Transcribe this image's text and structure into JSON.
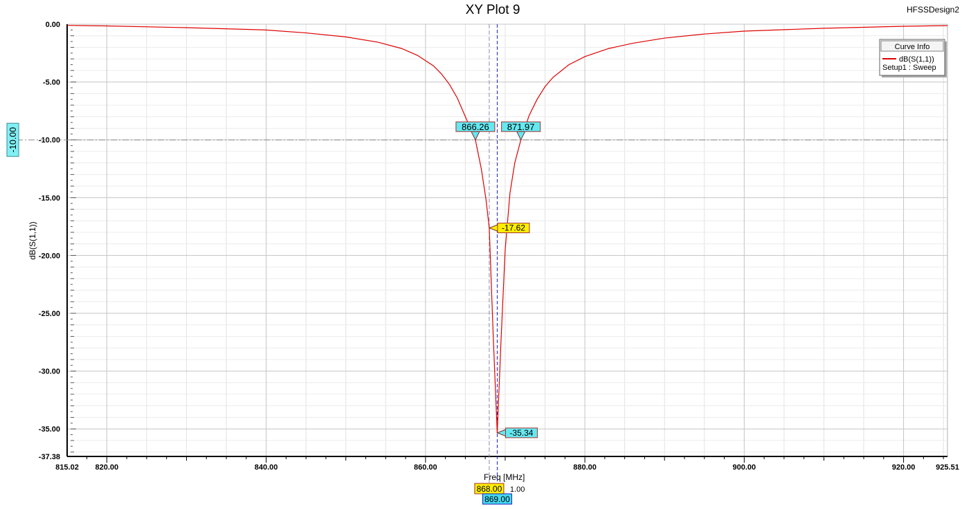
{
  "design_name": "HFSSDesign2",
  "chart_data": {
    "type": "line",
    "title": "XY Plot 9",
    "xlabel": "Freq [MHz]",
    "ylabel": "dB(S(1,1))",
    "xlim": [
      815.02,
      925.51
    ],
    "ylim": [
      -37.38,
      0.0
    ],
    "x_ticks": [
      {
        "value": 815.02,
        "label": "815.02"
      },
      {
        "value": 820,
        "label": "820.00"
      },
      {
        "value": 840,
        "label": "840.00"
      },
      {
        "value": 860,
        "label": "860.00"
      },
      {
        "value": 880,
        "label": "880.00"
      },
      {
        "value": 900,
        "label": "900.00"
      },
      {
        "value": 920,
        "label": "920.00"
      },
      {
        "value": 925.51,
        "label": "925.51"
      }
    ],
    "y_ticks": [
      {
        "value": 0,
        "label": "0.00"
      },
      {
        "value": -5,
        "label": "-5.00"
      },
      {
        "value": -10,
        "label": "-10.00"
      },
      {
        "value": -15,
        "label": "-15.00"
      },
      {
        "value": -20,
        "label": "-20.00"
      },
      {
        "value": -25,
        "label": "-25.00"
      },
      {
        "value": -30,
        "label": "-30.00"
      },
      {
        "value": -35,
        "label": "-35.00"
      },
      {
        "value": -37.38,
        "label": "-37.38"
      }
    ],
    "grid": true,
    "legend_position": "top-right",
    "legend": {
      "title": "Curve Info",
      "series_label": "dB(S(1,1))",
      "setup_label": "Setup1 : Sweep"
    },
    "series": [
      {
        "name": "dB(S(1,1))",
        "color": "#dd0000",
        "x": [
          815.02,
          820,
          830,
          840,
          845,
          850,
          854,
          857,
          859,
          861,
          862,
          863,
          864,
          865,
          866.26,
          867,
          867.6,
          868,
          868.5,
          869,
          869.5,
          870,
          870.6,
          871.2,
          871.97,
          873,
          874,
          875,
          876,
          878,
          880,
          883,
          886,
          890,
          895,
          900,
          910,
          920,
          925.51
        ],
        "values": [
          -0.1,
          -0.15,
          -0.3,
          -0.5,
          -0.75,
          -1.1,
          -1.55,
          -2.1,
          -2.7,
          -3.6,
          -4.3,
          -5.2,
          -6.4,
          -8.0,
          -10.0,
          -12.5,
          -15.2,
          -17.62,
          -27.0,
          -35.34,
          -27.0,
          -19.5,
          -14.6,
          -12.0,
          -10.0,
          -7.9,
          -6.5,
          -5.4,
          -4.6,
          -3.5,
          -2.8,
          -2.1,
          -1.65,
          -1.2,
          -0.85,
          -0.6,
          -0.35,
          -0.18,
          -0.12
        ]
      }
    ],
    "reference_line": {
      "y": -10.0,
      "label": "-10.00"
    },
    "markers": [
      {
        "x": 866.26,
        "y": -10.0,
        "label": "866.26",
        "color": "#66e8f0"
      },
      {
        "x": 871.97,
        "y": -10.0,
        "label": "871.97",
        "color": "#66e8f0"
      },
      {
        "x": 868.0,
        "y": -17.62,
        "label": "-17.62",
        "color": "#ffee00"
      },
      {
        "x": 869.0,
        "y": -35.34,
        "label": "-35.34",
        "color": "#66e8f0"
      }
    ],
    "cursors": [
      {
        "x": 868.0,
        "label": "868.00",
        "color": "#ffee00"
      },
      {
        "x": 869.0,
        "label": "869.00",
        "color": "#44d8f0"
      }
    ],
    "cursor_delta": "1.00"
  }
}
